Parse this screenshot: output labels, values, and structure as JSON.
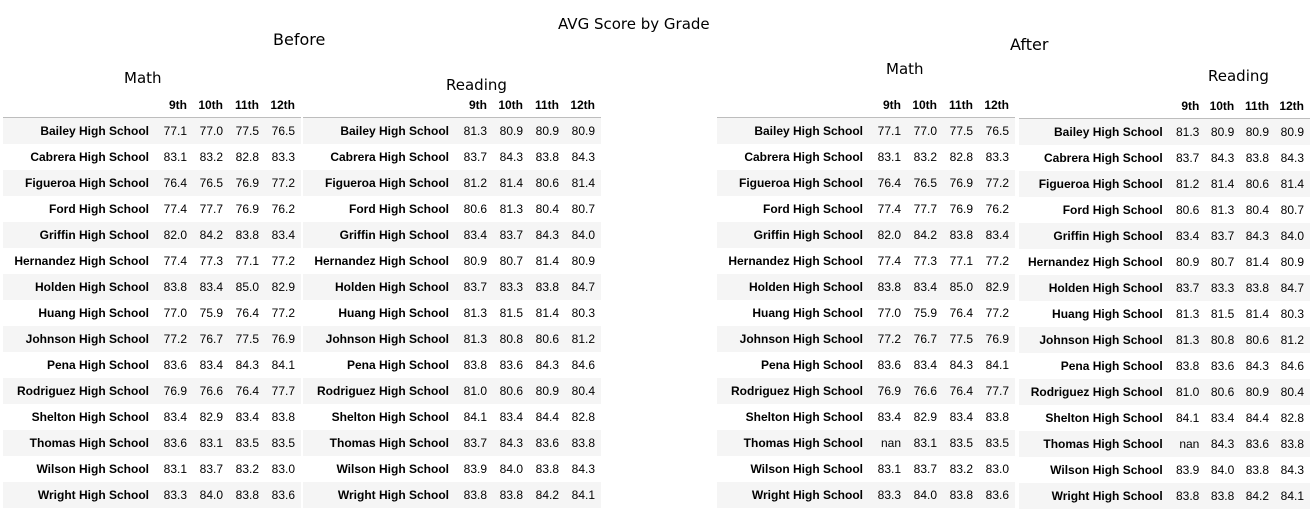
{
  "title": "AVG Score by Grade",
  "before": {
    "label": "Before",
    "math": {
      "title": "Math",
      "columns": [
        "9th",
        "10th",
        "11th",
        "12th"
      ],
      "rows": [
        {
          "school": "Bailey High School",
          "values": [
            "77.1",
            "77.0",
            "77.5",
            "76.5"
          ]
        },
        {
          "school": "Cabrera High School",
          "values": [
            "83.1",
            "83.2",
            "82.8",
            "83.3"
          ]
        },
        {
          "school": "Figueroa High School",
          "values": [
            "76.4",
            "76.5",
            "76.9",
            "77.2"
          ]
        },
        {
          "school": "Ford High School",
          "values": [
            "77.4",
            "77.7",
            "76.9",
            "76.2"
          ]
        },
        {
          "school": "Griffin High School",
          "values": [
            "82.0",
            "84.2",
            "83.8",
            "83.4"
          ]
        },
        {
          "school": "Hernandez High School",
          "values": [
            "77.4",
            "77.3",
            "77.1",
            "77.2"
          ]
        },
        {
          "school": "Holden High School",
          "values": [
            "83.8",
            "83.4",
            "85.0",
            "82.9"
          ]
        },
        {
          "school": "Huang High School",
          "values": [
            "77.0",
            "75.9",
            "76.4",
            "77.2"
          ]
        },
        {
          "school": "Johnson High School",
          "values": [
            "77.2",
            "76.7",
            "77.5",
            "76.9"
          ]
        },
        {
          "school": "Pena High School",
          "values": [
            "83.6",
            "83.4",
            "84.3",
            "84.1"
          ]
        },
        {
          "school": "Rodriguez High School",
          "values": [
            "76.9",
            "76.6",
            "76.4",
            "77.7"
          ]
        },
        {
          "school": "Shelton High School",
          "values": [
            "83.4",
            "82.9",
            "83.4",
            "83.8"
          ]
        },
        {
          "school": "Thomas High School",
          "values": [
            "83.6",
            "83.1",
            "83.5",
            "83.5"
          ]
        },
        {
          "school": "Wilson High School",
          "values": [
            "83.1",
            "83.7",
            "83.2",
            "83.0"
          ]
        },
        {
          "school": "Wright High School",
          "values": [
            "83.3",
            "84.0",
            "83.8",
            "83.6"
          ]
        }
      ]
    },
    "reading": {
      "title": "Reading",
      "columns": [
        "9th",
        "10th",
        "11th",
        "12th"
      ],
      "rows": [
        {
          "school": "Bailey High School",
          "values": [
            "81.3",
            "80.9",
            "80.9",
            "80.9"
          ]
        },
        {
          "school": "Cabrera High School",
          "values": [
            "83.7",
            "84.3",
            "83.8",
            "84.3"
          ]
        },
        {
          "school": "Figueroa High School",
          "values": [
            "81.2",
            "81.4",
            "80.6",
            "81.4"
          ]
        },
        {
          "school": "Ford High School",
          "values": [
            "80.6",
            "81.3",
            "80.4",
            "80.7"
          ]
        },
        {
          "school": "Griffin High School",
          "values": [
            "83.4",
            "83.7",
            "84.3",
            "84.0"
          ]
        },
        {
          "school": "Hernandez High School",
          "values": [
            "80.9",
            "80.7",
            "81.4",
            "80.9"
          ]
        },
        {
          "school": "Holden High School",
          "values": [
            "83.7",
            "83.3",
            "83.8",
            "84.7"
          ]
        },
        {
          "school": "Huang High School",
          "values": [
            "81.3",
            "81.5",
            "81.4",
            "80.3"
          ]
        },
        {
          "school": "Johnson High School",
          "values": [
            "81.3",
            "80.8",
            "80.6",
            "81.2"
          ]
        },
        {
          "school": "Pena High School",
          "values": [
            "83.8",
            "83.6",
            "84.3",
            "84.6"
          ]
        },
        {
          "school": "Rodriguez High School",
          "values": [
            "81.0",
            "80.6",
            "80.9",
            "80.4"
          ]
        },
        {
          "school": "Shelton High School",
          "values": [
            "84.1",
            "83.4",
            "84.4",
            "82.8"
          ]
        },
        {
          "school": "Thomas High School",
          "values": [
            "83.7",
            "84.3",
            "83.6",
            "83.8"
          ]
        },
        {
          "school": "Wilson High School",
          "values": [
            "83.9",
            "84.0",
            "83.8",
            "84.3"
          ]
        },
        {
          "school": "Wright High School",
          "values": [
            "83.8",
            "83.8",
            "84.2",
            "84.1"
          ]
        }
      ]
    }
  },
  "after": {
    "label": "After",
    "math": {
      "title": "Math",
      "columns": [
        "9th",
        "10th",
        "11th",
        "12th"
      ],
      "rows": [
        {
          "school": "Bailey High School",
          "values": [
            "77.1",
            "77.0",
            "77.5",
            "76.5"
          ]
        },
        {
          "school": "Cabrera High School",
          "values": [
            "83.1",
            "83.2",
            "82.8",
            "83.3"
          ]
        },
        {
          "school": "Figueroa High School",
          "values": [
            "76.4",
            "76.5",
            "76.9",
            "77.2"
          ]
        },
        {
          "school": "Ford High School",
          "values": [
            "77.4",
            "77.7",
            "76.9",
            "76.2"
          ]
        },
        {
          "school": "Griffin High School",
          "values": [
            "82.0",
            "84.2",
            "83.8",
            "83.4"
          ]
        },
        {
          "school": "Hernandez High School",
          "values": [
            "77.4",
            "77.3",
            "77.1",
            "77.2"
          ]
        },
        {
          "school": "Holden High School",
          "values": [
            "83.8",
            "83.4",
            "85.0",
            "82.9"
          ]
        },
        {
          "school": "Huang High School",
          "values": [
            "77.0",
            "75.9",
            "76.4",
            "77.2"
          ]
        },
        {
          "school": "Johnson High School",
          "values": [
            "77.2",
            "76.7",
            "77.5",
            "76.9"
          ]
        },
        {
          "school": "Pena High School",
          "values": [
            "83.6",
            "83.4",
            "84.3",
            "84.1"
          ]
        },
        {
          "school": "Rodriguez High School",
          "values": [
            "76.9",
            "76.6",
            "76.4",
            "77.7"
          ]
        },
        {
          "school": "Shelton High School",
          "values": [
            "83.4",
            "82.9",
            "83.4",
            "83.8"
          ]
        },
        {
          "school": "Thomas High School",
          "values": [
            "nan",
            "83.1",
            "83.5",
            "83.5"
          ]
        },
        {
          "school": "Wilson High School",
          "values": [
            "83.1",
            "83.7",
            "83.2",
            "83.0"
          ]
        },
        {
          "school": "Wright High School",
          "values": [
            "83.3",
            "84.0",
            "83.8",
            "83.6"
          ]
        }
      ]
    },
    "reading": {
      "title": "Reading",
      "columns": [
        "9th",
        "10th",
        "11th",
        "12th"
      ],
      "rows": [
        {
          "school": "Bailey High School",
          "values": [
            "81.3",
            "80.9",
            "80.9",
            "80.9"
          ]
        },
        {
          "school": "Cabrera High School",
          "values": [
            "83.7",
            "84.3",
            "83.8",
            "84.3"
          ]
        },
        {
          "school": "Figueroa High School",
          "values": [
            "81.2",
            "81.4",
            "80.6",
            "81.4"
          ]
        },
        {
          "school": "Ford High School",
          "values": [
            "80.6",
            "81.3",
            "80.4",
            "80.7"
          ]
        },
        {
          "school": "Griffin High School",
          "values": [
            "83.4",
            "83.7",
            "84.3",
            "84.0"
          ]
        },
        {
          "school": "Hernandez High School",
          "values": [
            "80.9",
            "80.7",
            "81.4",
            "80.9"
          ]
        },
        {
          "school": "Holden High School",
          "values": [
            "83.7",
            "83.3",
            "83.8",
            "84.7"
          ]
        },
        {
          "school": "Huang High School",
          "values": [
            "81.3",
            "81.5",
            "81.4",
            "80.3"
          ]
        },
        {
          "school": "Johnson High School",
          "values": [
            "81.3",
            "80.8",
            "80.6",
            "81.2"
          ]
        },
        {
          "school": "Pena High School",
          "values": [
            "83.8",
            "83.6",
            "84.3",
            "84.6"
          ]
        },
        {
          "school": "Rodriguez High School",
          "values": [
            "81.0",
            "80.6",
            "80.9",
            "80.4"
          ]
        },
        {
          "school": "Shelton High School",
          "values": [
            "84.1",
            "83.4",
            "84.4",
            "82.8"
          ]
        },
        {
          "school": "Thomas High School",
          "values": [
            "nan",
            "84.3",
            "83.6",
            "83.8"
          ]
        },
        {
          "school": "Wilson High School",
          "values": [
            "83.9",
            "84.0",
            "83.8",
            "84.3"
          ]
        },
        {
          "school": "Wright High School",
          "values": [
            "83.8",
            "83.8",
            "84.2",
            "84.1"
          ]
        }
      ]
    }
  }
}
